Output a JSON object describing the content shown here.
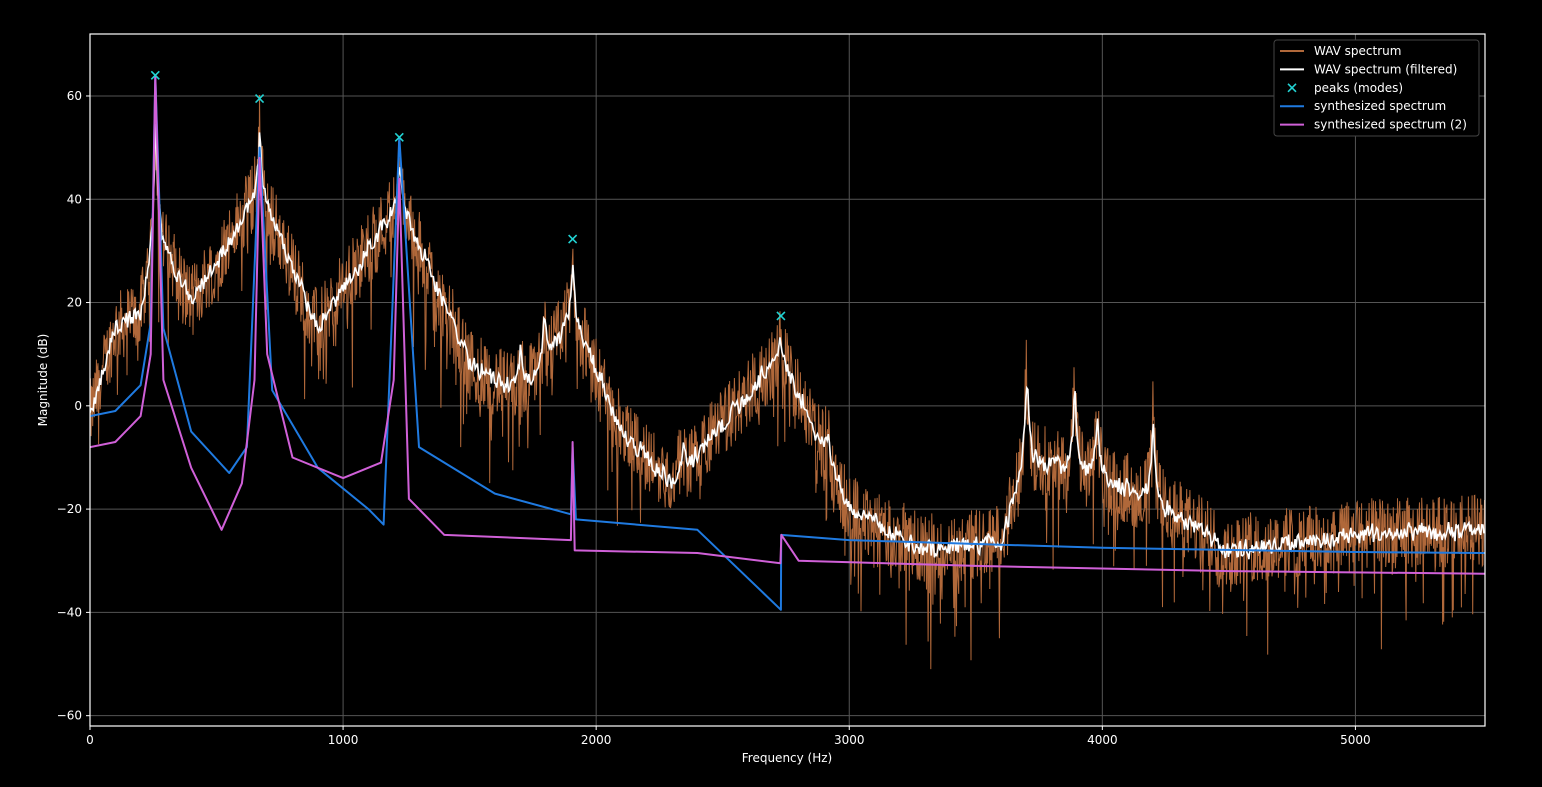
{
  "chart_data": {
    "type": "line",
    "title": "",
    "xlabel": "Frequency (Hz)",
    "ylabel": "Magnitude (dB)",
    "xlim": [
      0,
      5512
    ],
    "ylim": [
      -62,
      72
    ],
    "x_ticks": [
      0,
      1000,
      2000,
      3000,
      4000,
      5000
    ],
    "y_ticks": [
      -60,
      -40,
      -20,
      0,
      20,
      40,
      60
    ],
    "grid": true,
    "legend_position": "top-right",
    "colors": {
      "background": "#000000",
      "axes": "#ffffff",
      "grid": "#555555",
      "wav": "#b0683a",
      "filtered": "#ffffff",
      "peaks": "#22d3d3",
      "synth": "#1f7ae0",
      "synth2": "#d060d8"
    },
    "legend": [
      {
        "label": "WAV spectrum",
        "series": "wav"
      },
      {
        "label": "WAV spectrum (filtered)",
        "series": "filtered"
      },
      {
        "label": "peaks (modes)",
        "series": "peaks"
      },
      {
        "label": "synthesized spectrum",
        "series": "synth"
      },
      {
        "label": "synthesized spectrum (2)",
        "series": "synth2"
      }
    ],
    "peaks": [
      {
        "x": 258,
        "y": 64
      },
      {
        "x": 670,
        "y": 59.5
      },
      {
        "x": 1222,
        "y": 52
      },
      {
        "x": 1907,
        "y": 32.3
      },
      {
        "x": 2730,
        "y": 17.4
      }
    ],
    "wav_envelope": {
      "x": [
        0,
        100,
        200,
        258,
        400,
        670,
        900,
        1222,
        1500,
        1700,
        1907,
        2100,
        2300,
        2730,
        3000,
        3300,
        3600,
        3700,
        3900,
        4200,
        4500,
        5000,
        5512
      ],
      "y": [
        -2,
        15,
        18,
        35,
        20,
        42,
        15,
        40,
        8,
        2,
        18,
        -5,
        -15,
        10,
        -20,
        -28,
        -26,
        -10,
        -12,
        -18,
        -28,
        -25,
        -24
      ]
    },
    "series": [
      {
        "name": "synthesized spectrum",
        "x": [
          0,
          100,
          200,
          240,
          258,
          290,
          400,
          550,
          620,
          670,
          720,
          900,
          1100,
          1160,
          1222,
          1300,
          1600,
          1900,
          1907,
          1920,
          2400,
          2730,
          2731,
          3000,
          4000,
          5000,
          5512
        ],
        "y": [
          -2,
          -1,
          4,
          16,
          64,
          15,
          -5,
          -13,
          -8,
          50,
          3,
          -12,
          -20,
          -23,
          52,
          -8,
          -17,
          -21,
          -8,
          -22,
          -24,
          -39.5,
          -25,
          -26,
          -27.5,
          -28.3,
          -28.5
        ]
      },
      {
        "name": "synthesized spectrum (2)",
        "x": [
          0,
          100,
          200,
          240,
          258,
          290,
          400,
          520,
          600,
          650,
          670,
          700,
          800,
          1000,
          1150,
          1200,
          1222,
          1260,
          1400,
          1900,
          1907,
          1915,
          2400,
          2728,
          2732,
          2800,
          3500,
          4500,
          5512
        ],
        "y": [
          -8,
          -7,
          -2,
          10,
          64,
          5,
          -12,
          -24,
          -15,
          5,
          48,
          10,
          -10,
          -14,
          -11,
          5,
          44,
          -18,
          -25,
          -26,
          -7,
          -28,
          -28.5,
          -30.5,
          -25,
          -30,
          -31,
          -32,
          -32.5
        ]
      }
    ]
  }
}
